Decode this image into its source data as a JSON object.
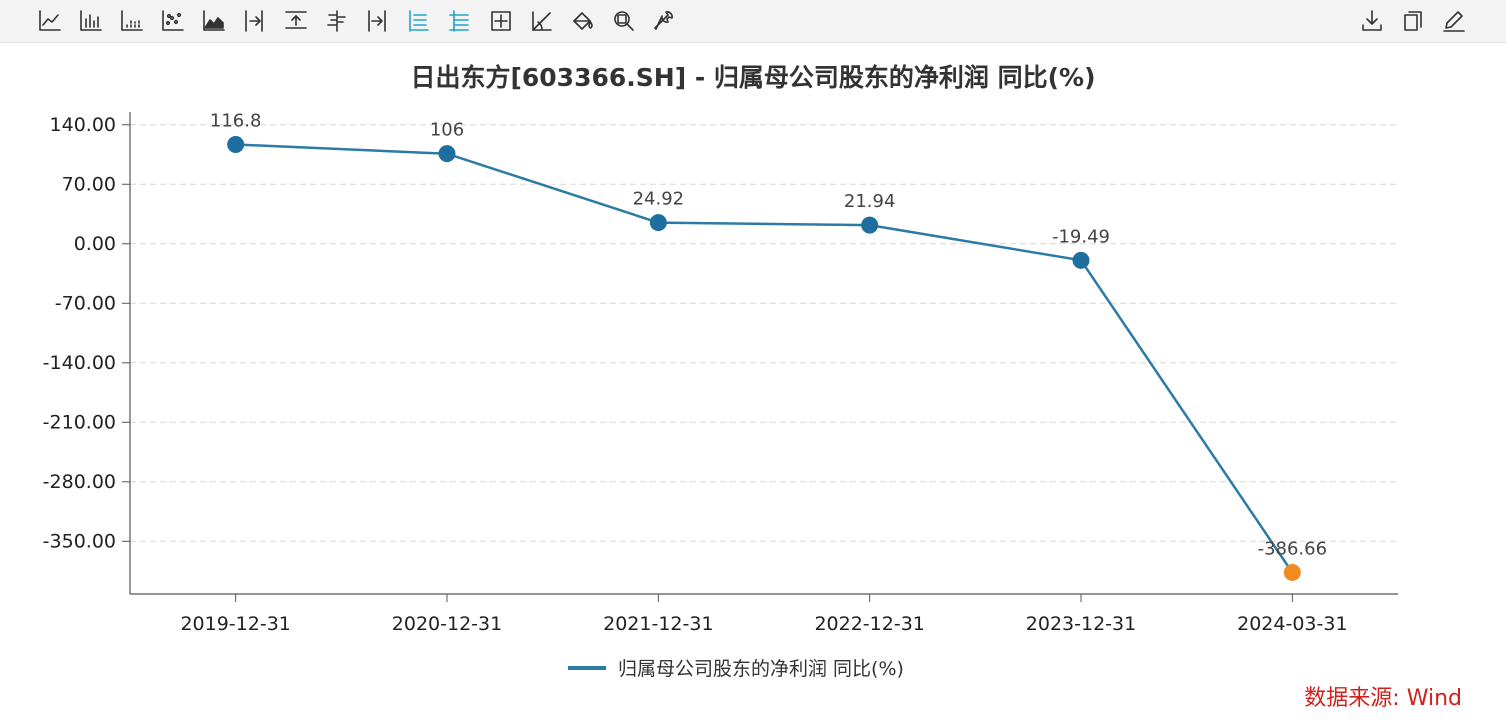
{
  "toolbar": {
    "left_icons": [
      {
        "name": "line-chart-icon",
        "active": false
      },
      {
        "name": "bar-chart-icon",
        "active": false
      },
      {
        "name": "dot-bar-chart-icon",
        "active": false
      },
      {
        "name": "scatter-chart-icon",
        "active": false
      },
      {
        "name": "area-chart-icon",
        "active": false
      },
      {
        "name": "align-right-icon",
        "active": false
      },
      {
        "name": "align-top-icon",
        "active": false
      },
      {
        "name": "align-center-icon",
        "active": false
      },
      {
        "name": "align-end-icon",
        "active": false
      },
      {
        "name": "list-left-icon",
        "active": true
      },
      {
        "name": "list-indent-icon",
        "active": true
      },
      {
        "name": "crosshair-box-icon",
        "active": false
      },
      {
        "name": "trend-angle-icon",
        "active": false
      },
      {
        "name": "paint-bucket-icon",
        "active": false
      },
      {
        "name": "zoom-search-icon",
        "active": false
      },
      {
        "name": "wrench-icon",
        "active": false
      }
    ],
    "right_icons": [
      {
        "name": "download-icon"
      },
      {
        "name": "copy-icon"
      },
      {
        "name": "edit-pencil-icon"
      }
    ]
  },
  "colors": {
    "line": "#2b7ba5",
    "point": "#1e6fa0",
    "last_point": "#f38a1f",
    "source": "#d0211c",
    "grid": "#d8d8d8",
    "axis": "#555555"
  },
  "chart_data": {
    "type": "line",
    "title": "日出东方[603366.SH] - 归属母公司股东的净利润 同比(%)",
    "categories": [
      "2019-12-31",
      "2020-12-31",
      "2021-12-31",
      "2022-12-31",
      "2023-12-31",
      "2024-03-31"
    ],
    "series": [
      {
        "name": "归属母公司股东的净利润 同比(%)",
        "values": [
          116.8,
          106,
          24.92,
          21.94,
          -19.49,
          -386.66
        ],
        "labels": [
          "116.8",
          "106",
          "24.92",
          "21.94",
          "-19.49",
          "-386.66"
        ]
      }
    ],
    "y_ticks": [
      "140.00",
      "70.00",
      "0.00",
      "-70.00",
      "-140.00",
      "-210.00",
      "-280.00",
      "-350.00"
    ],
    "y_tick_values": [
      140,
      70,
      0,
      -70,
      -140,
      -210,
      -280,
      -350
    ],
    "ylim": [
      -412,
      155
    ],
    "grid": true,
    "legend": "bottom-center"
  },
  "source": "数据来源: Wind"
}
